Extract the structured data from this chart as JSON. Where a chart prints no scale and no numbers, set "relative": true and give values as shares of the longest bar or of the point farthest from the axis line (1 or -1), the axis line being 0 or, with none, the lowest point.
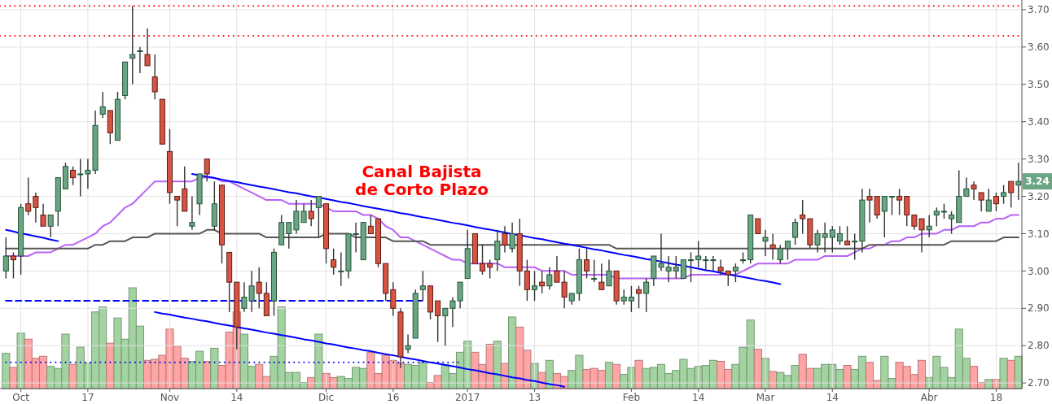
{
  "chart_data": [
    {
      "type": "candlestick",
      "categories": [
        null,
        null,
        "Oct",
        null,
        null,
        null,
        null,
        null,
        null,
        null,
        null,
        "17",
        null,
        null,
        null,
        null,
        null,
        null,
        null,
        null,
        null,
        null,
        "Nov",
        null,
        null,
        null,
        null,
        null,
        null,
        null,
        null,
        "14",
        null,
        null,
        null,
        null,
        null,
        null,
        null,
        null,
        null,
        null,
        null,
        "Dic",
        null,
        null,
        null,
        null,
        null,
        null,
        null,
        null,
        "16",
        null,
        null,
        null,
        null,
        null,
        null,
        null,
        null,
        null,
        "2017",
        null,
        null,
        null,
        null,
        null,
        null,
        null,
        null,
        "13",
        null,
        null,
        null,
        null,
        null,
        null,
        null,
        null,
        null,
        null,
        null,
        null,
        "Feb",
        null,
        null,
        null,
        null,
        null,
        null,
        null,
        null,
        "14",
        null,
        null,
        null,
        null,
        null,
        null,
        null,
        null,
        "Mar",
        null,
        null,
        null,
        null,
        null,
        null,
        null,
        null,
        "14",
        null,
        null,
        null,
        null,
        null,
        null,
        null,
        null,
        null,
        null,
        null,
        null,
        "Abr",
        null,
        null,
        null,
        null,
        null,
        null,
        null,
        null,
        "18",
        null,
        null,
        null
      ],
      "ohlc": [
        [
          3.0,
          3.09,
          2.98,
          3.04
        ],
        [
          3.04,
          3.05,
          2.98,
          3.03
        ],
        [
          3.04,
          3.18,
          2.99,
          3.17
        ],
        [
          3.18,
          3.25,
          3.15,
          3.16
        ],
        [
          3.2,
          3.21,
          3.13,
          3.17
        ],
        [
          3.15,
          3.18,
          3.12,
          3.12
        ],
        [
          3.12,
          3.15,
          3.09,
          3.15
        ],
        [
          3.16,
          3.25,
          3.12,
          3.25
        ],
        [
          3.22,
          3.29,
          3.22,
          3.28
        ],
        [
          3.27,
          3.28,
          3.23,
          3.25
        ],
        [
          3.26,
          3.3,
          3.2,
          3.26
        ],
        [
          3.26,
          3.3,
          3.22,
          3.27
        ],
        [
          3.27,
          3.43,
          3.26,
          3.39
        ],
        [
          3.42,
          3.48,
          3.41,
          3.44
        ],
        [
          3.43,
          3.43,
          3.34,
          3.37
        ],
        [
          3.35,
          3.48,
          3.35,
          3.46
        ],
        [
          3.47,
          3.56,
          3.46,
          3.56
        ],
        [
          3.57,
          3.71,
          3.5,
          3.58
        ],
        [
          3.59,
          3.6,
          3.53,
          3.59
        ],
        [
          3.58,
          3.65,
          3.55,
          3.55
        ],
        [
          3.52,
          3.58,
          3.46,
          3.48
        ],
        [
          3.46,
          3.46,
          3.34,
          3.34
        ],
        [
          3.32,
          3.38,
          3.18,
          3.21
        ],
        [
          3.2,
          3.2,
          3.12,
          3.19
        ],
        [
          3.22,
          3.28,
          3.16,
          3.16
        ],
        [
          3.12,
          3.2,
          3.11,
          3.13
        ],
        [
          3.18,
          3.26,
          3.15,
          3.26
        ],
        [
          3.3,
          3.3,
          3.24,
          3.26
        ],
        [
          3.12,
          3.24,
          3.11,
          3.18
        ],
        [
          3.23,
          3.23,
          3.02,
          3.07
        ],
        [
          3.05,
          3.05,
          2.89,
          2.97
        ],
        [
          2.97,
          2.97,
          2.79,
          2.85
        ],
        [
          2.9,
          2.97,
          2.89,
          2.93
        ],
        [
          2.92,
          3.0,
          2.89,
          2.96
        ],
        [
          2.97,
          3.01,
          2.9,
          2.94
        ],
        [
          2.94,
          2.97,
          2.88,
          2.88
        ],
        [
          2.92,
          3.06,
          2.88,
          3.05
        ],
        [
          3.07,
          3.15,
          3.07,
          3.13
        ],
        [
          3.1,
          3.13,
          3.06,
          3.13
        ],
        [
          3.11,
          3.19,
          3.1,
          3.16
        ],
        [
          3.13,
          3.18,
          3.13,
          3.16
        ],
        [
          3.16,
          3.19,
          3.12,
          3.14
        ],
        [
          3.17,
          3.2,
          3.09,
          3.2
        ],
        [
          3.18,
          3.18,
          3.02,
          3.06
        ],
        [
          3.03,
          3.06,
          2.99,
          3.01
        ],
        [
          3.0,
          3.05,
          2.96,
          3.0
        ],
        [
          3.0,
          3.1,
          2.98,
          3.1
        ],
        [
          3.1,
          3.13,
          3.05,
          3.1
        ],
        [
          3.03,
          3.13,
          3.03,
          3.13
        ],
        [
          3.12,
          3.15,
          3.1,
          3.1
        ],
        [
          3.14,
          3.14,
          3.01,
          3.02
        ],
        [
          3.02,
          3.02,
          2.92,
          2.94
        ],
        [
          2.95,
          2.97,
          2.88,
          2.9
        ],
        [
          2.89,
          2.9,
          2.74,
          2.77
        ],
        [
          2.79,
          2.83,
          2.78,
          2.8
        ],
        [
          2.82,
          2.95,
          2.82,
          2.94
        ],
        [
          2.95,
          3.0,
          2.92,
          2.96
        ],
        [
          2.96,
          2.96,
          2.87,
          2.89
        ],
        [
          2.92,
          2.92,
          2.81,
          2.88
        ],
        [
          2.88,
          2.9,
          2.8,
          2.9
        ],
        [
          2.9,
          2.93,
          2.85,
          2.92
        ],
        [
          2.92,
          2.97,
          2.9,
          2.97
        ],
        [
          2.98,
          3.11,
          2.98,
          3.06
        ],
        [
          3.1,
          3.1,
          3.02,
          3.02
        ],
        [
          3.02,
          3.07,
          2.99,
          3.0
        ],
        [
          3.02,
          3.03,
          2.98,
          3.01
        ],
        [
          3.03,
          3.11,
          3.0,
          3.08
        ],
        [
          3.1,
          3.12,
          3.05,
          3.07
        ],
        [
          3.06,
          3.13,
          3.05,
          3.1
        ],
        [
          3.1,
          3.14,
          2.96,
          3.0
        ],
        [
          3.0,
          3.03,
          2.92,
          2.95
        ],
        [
          2.95,
          3.0,
          2.92,
          2.96
        ],
        [
          2.97,
          3.0,
          2.94,
          2.96
        ],
        [
          2.96,
          3.01,
          2.95,
          2.99
        ],
        [
          3.0,
          3.04,
          2.97,
          2.97
        ],
        [
          2.97,
          3.0,
          2.9,
          2.93
        ],
        [
          2.92,
          2.94,
          2.91,
          2.94
        ],
        [
          2.94,
          3.06,
          2.92,
          3.03
        ],
        [
          3.03,
          3.06,
          2.98,
          3.0
        ],
        [
          2.98,
          3.03,
          2.97,
          2.98
        ],
        [
          2.97,
          3.02,
          2.95,
          2.95
        ],
        [
          2.96,
          3.03,
          2.96,
          3.0
        ],
        [
          3.0,
          3.0,
          2.91,
          2.92
        ],
        [
          2.92,
          2.95,
          2.91,
          2.93
        ],
        [
          2.92,
          2.96,
          2.89,
          2.93
        ],
        [
          2.95,
          2.96,
          2.9,
          2.94
        ],
        [
          2.94,
          2.98,
          2.89,
          2.97
        ],
        [
          2.98,
          3.04,
          2.96,
          3.04
        ],
        [
          3.01,
          3.1,
          3.0,
          3.02
        ],
        [
          3.0,
          3.04,
          2.97,
          3.01
        ],
        [
          3.0,
          3.04,
          2.98,
          3.01
        ],
        [
          2.98,
          3.03,
          2.98,
          3.03
        ],
        [
          3.03,
          3.05,
          2.97,
          3.03
        ],
        [
          3.03,
          3.08,
          3.01,
          3.04
        ],
        [
          3.03,
          3.04,
          3.0,
          3.03
        ],
        [
          3.03,
          3.04,
          3.0,
          3.03
        ],
        [
          3.01,
          3.03,
          2.99,
          3.0
        ],
        [
          3.0,
          3.0,
          2.96,
          2.99
        ],
        [
          3.0,
          3.02,
          2.97,
          3.01
        ],
        [
          3.03,
          3.05,
          3.02,
          3.03
        ],
        [
          3.03,
          3.15,
          3.02,
          3.15
        ],
        [
          3.14,
          3.14,
          3.1,
          3.1
        ],
        [
          3.08,
          3.11,
          3.04,
          3.09
        ],
        [
          3.07,
          3.1,
          3.03,
          3.06
        ],
        [
          3.03,
          3.07,
          3.02,
          3.06
        ],
        [
          3.06,
          3.08,
          3.03,
          3.08
        ],
        [
          3.09,
          3.14,
          3.07,
          3.13
        ],
        [
          3.15,
          3.19,
          3.1,
          3.14
        ],
        [
          3.14,
          3.14,
          3.06,
          3.07
        ],
        [
          3.07,
          3.11,
          3.05,
          3.1
        ],
        [
          3.09,
          3.13,
          3.05,
          3.1
        ],
        [
          3.09,
          3.12,
          3.05,
          3.11
        ],
        [
          3.08,
          3.12,
          3.07,
          3.1
        ],
        [
          3.08,
          3.12,
          3.07,
          3.07
        ],
        [
          3.08,
          3.1,
          3.03,
          3.08
        ],
        [
          3.08,
          3.22,
          3.05,
          3.19
        ],
        [
          3.2,
          3.22,
          3.13,
          3.19
        ],
        [
          3.2,
          3.2,
          3.14,
          3.15
        ],
        [
          3.16,
          3.2,
          3.09,
          3.2
        ],
        [
          3.2,
          3.2,
          3.15,
          3.2
        ],
        [
          3.2,
          3.22,
          3.15,
          3.19
        ],
        [
          3.2,
          3.2,
          3.12,
          3.15
        ],
        [
          3.15,
          3.15,
          3.11,
          3.12
        ],
        [
          3.14,
          3.14,
          3.05,
          3.11
        ],
        [
          3.11,
          3.15,
          3.09,
          3.12
        ],
        [
          3.15,
          3.17,
          3.12,
          3.16
        ],
        [
          3.16,
          3.18,
          3.14,
          3.16
        ],
        [
          3.14,
          3.16,
          3.1,
          3.15
        ],
        [
          3.13,
          3.27,
          3.13,
          3.2
        ],
        [
          3.2,
          3.25,
          3.2,
          3.22
        ],
        [
          3.23,
          3.24,
          3.19,
          3.22
        ],
        [
          3.21,
          3.21,
          3.16,
          3.19
        ],
        [
          3.16,
          3.22,
          3.16,
          3.19
        ],
        [
          3.2,
          3.21,
          3.16,
          3.18
        ],
        [
          3.2,
          3.23,
          3.18,
          3.21
        ],
        [
          3.24,
          3.24,
          3.17,
          3.21
        ],
        [
          3.23,
          3.29,
          3.19,
          3.24
        ]
      ],
      "series": [
        {
          "type": "line",
          "color": "#b862f5",
          "values": [
            3.04,
            3.04,
            3.04,
            3.04,
            3.05,
            3.05,
            3.05,
            3.06,
            3.07,
            3.07,
            3.08,
            3.09,
            3.1,
            3.12,
            3.13,
            3.15,
            3.17,
            3.18,
            3.2,
            3.22,
            3.24,
            3.24,
            3.24,
            3.24,
            3.24,
            3.24,
            3.25,
            3.25,
            3.25,
            3.24,
            3.24,
            3.23,
            3.22,
            3.21,
            3.2,
            3.19,
            3.19,
            3.19,
            3.18,
            3.18,
            3.18,
            3.18,
            3.18,
            3.17,
            3.16,
            3.16,
            3.16,
            3.16,
            3.15,
            3.15,
            3.14,
            3.12,
            3.11,
            3.09,
            3.09,
            3.08,
            3.07,
            3.06,
            3.05,
            3.04,
            3.03,
            3.03,
            3.02,
            3.02,
            3.02,
            3.02,
            3.02,
            3.01,
            3.01,
            3.01,
            3.01,
            3.01,
            3.0,
            3.0,
            3.0,
            3.0,
            2.99,
            2.99,
            2.99,
            2.99,
            2.99,
            2.99,
            2.98,
            2.98,
            2.98,
            2.98,
            2.98,
            2.98,
            2.98,
            2.98,
            2.98,
            2.98,
            2.99,
            2.99,
            2.99,
            2.99,
            2.99,
            2.99,
            2.99,
            3.0,
            3.01,
            3.02,
            3.02,
            3.02,
            3.02,
            3.02,
            3.03,
            3.03,
            3.03,
            3.03,
            3.04,
            3.04,
            3.04,
            3.04,
            3.05,
            3.06,
            3.06,
            3.07,
            3.07,
            3.08,
            3.08,
            3.09,
            3.09,
            3.1,
            3.1,
            3.1,
            3.11,
            3.11,
            3.12,
            3.12,
            3.12,
            3.13,
            3.13,
            3.14,
            3.14,
            3.15,
            3.15
          ]
        },
        {
          "type": "line",
          "color": "#555555",
          "values": [
            3.06,
            3.06,
            3.06,
            3.06,
            3.06,
            3.06,
            3.06,
            3.06,
            3.06,
            3.06,
            3.06,
            3.06,
            3.07,
            3.07,
            3.08,
            3.08,
            3.08,
            3.09,
            3.09,
            3.09,
            3.1,
            3.1,
            3.1,
            3.1,
            3.1,
            3.1,
            3.1,
            3.11,
            3.11,
            3.1,
            3.1,
            3.1,
            3.1,
            3.1,
            3.1,
            3.09,
            3.09,
            3.09,
            3.09,
            3.09,
            3.09,
            3.09,
            3.09,
            3.1,
            3.1,
            3.1,
            3.1,
            3.09,
            3.09,
            3.09,
            3.09,
            3.09,
            3.08,
            3.08,
            3.08,
            3.08,
            3.08,
            3.07,
            3.07,
            3.07,
            3.07,
            3.07,
            3.07,
            3.07,
            3.07,
            3.07,
            3.07,
            3.07,
            3.07,
            3.07,
            3.07,
            3.07,
            3.07,
            3.07,
            3.07,
            3.07,
            3.07,
            3.07,
            3.07,
            3.07,
            3.07,
            3.07,
            3.06,
            3.06,
            3.06,
            3.06,
            3.06,
            3.06,
            3.06,
            3.06,
            3.06,
            3.06,
            3.06,
            3.06,
            3.06,
            3.06,
            3.06,
            3.06,
            3.06,
            3.06,
            3.06,
            3.06,
            3.06,
            3.06,
            3.06,
            3.06,
            3.06,
            3.06,
            3.06,
            3.06,
            3.06,
            3.06,
            3.06,
            3.06,
            3.06,
            3.06,
            3.07,
            3.07,
            3.07,
            3.07,
            3.07,
            3.07,
            3.07,
            3.07,
            3.07,
            3.07,
            3.07,
            3.08,
            3.08,
            3.08,
            3.08,
            3.08,
            3.08,
            3.08,
            3.09,
            3.09,
            3.09
          ]
        },
        {
          "type": "line",
          "color": "#0000ff",
          "line_style": "solid",
          "values": [
            null,
            null,
            null,
            null,
            null,
            null,
            null,
            null,
            null,
            null,
            null,
            null,
            null,
            null,
            null,
            null,
            null,
            null,
            null,
            null,
            null,
            null,
            null,
            null,
            null,
            3.26,
            3.256,
            3.253,
            3.249,
            3.245,
            3.241,
            3.238,
            3.234,
            3.23,
            3.226,
            3.223,
            3.219,
            3.215,
            3.211,
            3.208,
            3.204,
            3.2,
            3.197,
            3.193,
            3.189,
            3.185,
            3.182,
            3.178,
            3.174,
            3.17,
            3.167,
            3.163,
            3.159,
            3.155,
            3.152,
            3.148,
            3.144,
            3.141,
            3.137,
            3.133,
            3.129,
            3.126,
            3.122,
            3.118,
            3.114,
            3.111,
            3.107,
            3.103,
            3.099,
            3.096,
            3.092,
            3.088,
            3.085,
            3.081,
            3.077,
            3.073,
            3.07,
            3.066,
            3.062,
            3.058,
            3.055,
            3.051,
            3.047,
            3.043,
            3.04,
            3.036,
            3.032,
            3.029,
            3.025,
            3.021,
            3.017,
            3.014,
            3.01,
            3.006,
            3.002,
            2.999,
            2.995,
            2.991,
            2.987,
            2.984,
            2.98,
            2.976,
            2.973,
            2.969,
            2.965,
            null,
            null,
            null,
            null,
            null,
            null,
            null,
            null,
            null,
            null,
            null,
            null,
            null,
            null,
            null,
            null,
            null,
            null,
            null,
            null,
            null,
            null,
            null,
            null,
            null,
            null,
            null,
            null,
            null,
            null,
            null,
            null
          ]
        },
        {
          "type": "line",
          "color": "#0000ff",
          "line_style": "solid",
          "values": [
            null,
            null,
            null,
            null,
            null,
            null,
            null,
            null,
            null,
            null,
            null,
            null,
            null,
            null,
            null,
            null,
            null,
            null,
            null,
            null,
            2.89,
            2.886,
            2.883,
            2.879,
            2.875,
            2.872,
            2.868,
            2.865,
            2.861,
            2.857,
            2.854,
            2.85,
            2.846,
            2.843,
            2.839,
            2.835,
            2.832,
            2.828,
            2.825,
            2.821,
            2.817,
            2.814,
            2.81,
            2.806,
            2.803,
            2.799,
            2.795,
            2.792,
            2.788,
            2.785,
            2.781,
            2.777,
            2.774,
            2.77,
            2.766,
            2.763,
            2.759,
            2.755,
            2.752,
            2.748,
            2.745,
            2.741,
            2.737,
            2.734,
            2.73,
            2.726,
            2.723,
            2.719,
            2.715,
            2.712,
            2.708,
            2.705,
            2.701,
            2.697,
            2.694,
            2.69,
            null,
            null,
            null,
            null,
            null,
            null,
            null,
            null,
            null,
            null,
            null,
            null,
            null,
            null,
            null,
            null,
            null,
            null,
            null,
            null,
            null,
            null,
            null,
            null,
            null,
            null,
            null,
            null,
            null,
            null,
            null,
            null,
            null,
            null,
            null,
            null,
            null,
            null,
            null,
            null,
            null,
            null,
            null,
            null,
            null,
            null,
            null,
            null,
            null,
            null,
            null,
            null,
            null,
            null,
            null,
            null,
            null,
            null,
            null,
            null,
            null
          ]
        },
        {
          "type": "line",
          "color": "#0000ff",
          "line_style": "solid",
          "values": [
            3.11,
            3.106,
            3.101,
            3.097,
            3.093,
            3.089,
            3.084,
            3.08,
            null,
            null,
            null,
            null,
            null,
            null,
            null,
            null,
            null,
            null,
            null,
            null,
            null,
            null,
            null,
            null,
            null,
            null,
            null,
            null,
            null,
            null,
            null,
            null,
            null,
            null,
            null,
            null,
            null,
            null,
            null,
            null,
            null,
            null,
            null,
            null,
            null,
            null,
            null,
            null,
            null,
            null,
            null,
            null,
            null,
            null,
            null,
            null,
            null,
            null,
            null,
            null,
            null,
            null,
            null,
            null,
            null,
            null,
            null,
            null,
            null,
            null,
            null,
            null,
            null,
            null,
            null,
            null,
            null,
            null,
            null,
            null,
            null,
            null,
            null,
            null,
            null,
            null,
            null,
            null,
            null,
            null,
            null,
            null,
            null,
            null,
            null,
            null,
            null,
            null,
            null,
            null,
            null,
            null,
            null,
            null,
            null,
            null,
            null,
            null,
            null,
            null,
            null,
            null,
            null,
            null,
            null,
            null,
            null,
            null,
            null,
            null,
            null,
            null,
            null,
            null,
            null,
            null,
            null,
            null,
            null,
            null,
            null,
            null,
            null,
            null,
            null,
            null,
            null
          ]
        },
        {
          "type": "line",
          "color": "#0000ff",
          "line_style": "dashed",
          "values": [
            2.92,
            2.92,
            2.92,
            2.92,
            2.92,
            2.92,
            2.92,
            2.92,
            2.92,
            2.92,
            2.92,
            2.92,
            2.92,
            2.92,
            2.92,
            2.92,
            2.92,
            2.92,
            2.92,
            2.92,
            2.92,
            2.92,
            2.92,
            2.92,
            2.92,
            2.92,
            2.92,
            2.92,
            2.92,
            2.92,
            2.92,
            2.92,
            2.92,
            2.92,
            2.92,
            2.92,
            2.92,
            2.92,
            2.92,
            2.92,
            2.92,
            2.92,
            2.92,
            2.92,
            2.92,
            2.92,
            2.92,
            2.92,
            2.92,
            2.92,
            2.92,
            2.92,
            2.92,
            2.92,
            2.92,
            2.92,
            2.92,
            null,
            null,
            null,
            null,
            null,
            null,
            null,
            null,
            null,
            null,
            null,
            null,
            null,
            null,
            null,
            null,
            null,
            null,
            null,
            null,
            null,
            null,
            null,
            null,
            null,
            null,
            null,
            null,
            null,
            null,
            null,
            null,
            null,
            null,
            null,
            null,
            null,
            null,
            null,
            null,
            null,
            null,
            null,
            null,
            null,
            null,
            null,
            null,
            null,
            null,
            null,
            null,
            null,
            null,
            null,
            null,
            null,
            null,
            null,
            null,
            null,
            null,
            null,
            null,
            null,
            null,
            null,
            null,
            null,
            null,
            null,
            null,
            null,
            null,
            null,
            null,
            null,
            null,
            null,
            null
          ]
        },
        {
          "type": "line",
          "color": "#0000ff",
          "line_style": "dotted",
          "values": [
            2.755,
            2.755,
            2.755,
            2.755,
            2.755,
            2.755,
            2.755,
            2.755,
            2.755,
            2.755,
            2.755,
            2.755,
            2.755,
            2.755,
            2.755,
            2.755,
            2.755,
            2.755,
            2.755,
            2.755,
            2.755,
            2.755,
            2.755,
            2.755,
            2.755,
            2.755,
            2.755,
            2.755,
            2.755,
            2.755,
            2.755,
            2.755,
            2.755,
            2.755,
            2.755,
            2.755,
            2.755,
            2.755,
            2.755,
            2.755,
            2.755,
            2.755,
            2.755,
            2.755,
            2.755,
            2.755,
            2.755,
            2.755,
            2.755,
            2.755,
            2.755,
            2.755,
            2.755,
            2.755,
            2.755,
            2.755,
            2.755,
            2.755,
            2.755,
            2.755,
            2.755,
            2.755,
            null,
            null,
            null,
            null,
            null,
            null,
            null,
            null,
            null,
            null,
            null,
            null,
            null,
            null,
            null,
            null,
            null,
            null,
            null,
            null,
            null,
            null,
            null,
            null,
            null,
            null,
            null,
            null,
            null,
            null,
            null,
            null,
            null,
            null,
            null,
            null,
            null,
            null,
            null,
            null,
            null,
            null,
            null,
            null,
            null,
            null,
            null,
            null,
            null,
            null,
            null,
            null,
            null,
            null,
            null,
            null,
            null,
            null,
            null,
            null,
            null,
            null,
            null,
            null,
            null,
            null,
            null,
            null,
            null,
            null,
            null,
            null,
            null,
            null,
            null
          ]
        }
      ],
      "ref_lines": [
        {
          "axis": "y",
          "value": 3.71,
          "color": "#ff0000",
          "line_style": "dotted"
        },
        {
          "axis": "y",
          "value": 3.63,
          "color": "#ff0000",
          "line_style": "dotted"
        }
      ],
      "ylim": [
        2.685,
        3.726
      ],
      "yticks": [
        {
          "value": 2.7,
          "label": "2.70"
        },
        {
          "value": 2.8,
          "label": "2.80"
        },
        {
          "value": 2.9,
          "label": "2.90"
        },
        {
          "value": 3.0,
          "label": "3.00"
        },
        {
          "value": 3.1,
          "label": "3.10"
        },
        {
          "value": 3.2,
          "label": "3.20"
        },
        {
          "value": 3.3,
          "label": "3.30"
        },
        {
          "value": 3.4,
          "label": "3.40"
        },
        {
          "value": 3.5,
          "label": "3.50"
        },
        {
          "value": 3.6,
          "label": "3.60"
        },
        {
          "value": 3.7,
          "label": "3.70"
        }
      ],
      "grid": true,
      "annotations": [
        "Canal Bajista\nde Corto Plazo",
        {
          "text": "3.24",
          "y": 3.24
        }
      ]
    },
    {
      "type": "bar",
      "relative": true,
      "categories": [
        null,
        null,
        null,
        null,
        null,
        null,
        null,
        null,
        null,
        null,
        null,
        null,
        null,
        null,
        null,
        null,
        null,
        null,
        null,
        null,
        null,
        null,
        null,
        null,
        null,
        null,
        null,
        null,
        null,
        null,
        null,
        null,
        null,
        null,
        null,
        null,
        null,
        null,
        null,
        null,
        null,
        null,
        null,
        null,
        null,
        null,
        null,
        null,
        null,
        null,
        null,
        null,
        null,
        null,
        null,
        null,
        null,
        null,
        null,
        null,
        null,
        null,
        null,
        null,
        null,
        null,
        null,
        null,
        null,
        null,
        null,
        null,
        null,
        null,
        null,
        null,
        null,
        null,
        null,
        null,
        null,
        null,
        null,
        null,
        null,
        null,
        null,
        null,
        null,
        null,
        null,
        null,
        null,
        null,
        null,
        null,
        null,
        null,
        null,
        null,
        null,
        null,
        null,
        null,
        null,
        null,
        null,
        null,
        null,
        null,
        null,
        null,
        null,
        null,
        null,
        null,
        null,
        null,
        null,
        null,
        null,
        null,
        null,
        null,
        null,
        null,
        null,
        null,
        null,
        null,
        null,
        null,
        null,
        null,
        null,
        null,
        null
      ],
      "values": [
        0.35,
        0.21,
        0.55,
        0.49,
        0.3,
        0.32,
        0.22,
        0.2,
        0.54,
        0.24,
        0.41,
        0.25,
        0.76,
        0.81,
        0.45,
        0.7,
        0.49,
        1.0,
        0.62,
        0.28,
        0.29,
        0.33,
        0.59,
        0.42,
        0.3,
        0.27,
        0.37,
        0.27,
        0.4,
        0.23,
        0.56,
        0.76,
        0.54,
        0.22,
        0.24,
        0.12,
        0.32,
        0.81,
        0.16,
        0.16,
        0.06,
        0.11,
        0.54,
        0.15,
        0.11,
        0.12,
        0.1,
        0.21,
        0.2,
        0.36,
        0.15,
        0.33,
        0.28,
        0.25,
        0.24,
        0.23,
        0.26,
        0.06,
        0.13,
        0.24,
        0.15,
        0.36,
        0.47,
        0.36,
        0.24,
        0.44,
        0.47,
        0.25,
        0.71,
        0.61,
        0.38,
        0.25,
        0.16,
        0.28,
        0.15,
        0.12,
        0.18,
        0.33,
        0.19,
        0.2,
        0.18,
        0.26,
        0.24,
        0.14,
        0.21,
        0.28,
        0.2,
        0.21,
        0.24,
        0.15,
        0.18,
        0.29,
        0.2,
        0.22,
        0.23,
        0.28,
        0.27,
        0.19,
        0.24,
        0.41,
        0.68,
        0.39,
        0.3,
        0.17,
        0.16,
        0.13,
        0.23,
        0.34,
        0.2,
        0.2,
        0.24,
        0.24,
        0.19,
        0.23,
        0.19,
        0.32,
        0.26,
        0.08,
        0.32,
        0.1,
        0.26,
        0.22,
        0.14,
        0.28,
        0.11,
        0.32,
        0.21,
        0.11,
        0.59,
        0.3,
        0.22,
        0.06,
        0.09,
        0.09,
        0.3,
        0.28,
        0.32
      ],
      "colors": [
        "#a3d3a1",
        "#ffa5a5",
        "#a3d3a1",
        "#ffa5a5",
        "#ffa5a5",
        "#ffa5a5",
        "#a3d3a1",
        "#a3d3a1",
        "#a3d3a1",
        "#ffa5a5",
        "#a3d3a1",
        "#a3d3a1",
        "#a3d3a1",
        "#a3d3a1",
        "#ffa5a5",
        "#a3d3a1",
        "#a3d3a1",
        "#a3d3a1",
        "#a3d3a1",
        "#ffa5a5",
        "#ffa5a5",
        "#ffa5a5",
        "#ffa5a5",
        "#ffa5a5",
        "#ffa5a5",
        "#a3d3a1",
        "#a3d3a1",
        "#ffa5a5",
        "#a3d3a1",
        "#ffa5a5",
        "#ffa5a5",
        "#ffa5a5",
        "#a3d3a1",
        "#a3d3a1",
        "#ffa5a5",
        "#ffa5a5",
        "#a3d3a1",
        "#a3d3a1",
        "#a3d3a1",
        "#a3d3a1",
        "#a3d3a1",
        "#ffa5a5",
        "#a3d3a1",
        "#ffa5a5",
        "#ffa5a5",
        "#a3d3a1",
        "#a3d3a1",
        "#a3d3a1",
        "#a3d3a1",
        "#ffa5a5",
        "#ffa5a5",
        "#ffa5a5",
        "#ffa5a5",
        "#ffa5a5",
        "#a3d3a1",
        "#a3d3a1",
        "#a3d3a1",
        "#ffa5a5",
        "#ffa5a5",
        "#a3d3a1",
        "#a3d3a1",
        "#a3d3a1",
        "#a3d3a1",
        "#ffa5a5",
        "#ffa5a5",
        "#ffa5a5",
        "#a3d3a1",
        "#ffa5a5",
        "#a3d3a1",
        "#ffa5a5",
        "#ffa5a5",
        "#a3d3a1",
        "#ffa5a5",
        "#a3d3a1",
        "#ffa5a5",
        "#ffa5a5",
        "#a3d3a1",
        "#a3d3a1",
        "#ffa5a5",
        "#ffa5a5",
        "#ffa5a5",
        "#a3d3a1",
        "#ffa5a5",
        "#a3d3a1",
        "#a3d3a1",
        "#ffa5a5",
        "#a3d3a1",
        "#a3d3a1",
        "#a3d3a1",
        "#a3d3a1",
        "#a3d3a1",
        "#a3d3a1",
        "#a3d3a1",
        "#a3d3a1",
        "#a3d3a1",
        "#a3d3a1",
        "#ffa5a5",
        "#ffa5a5",
        "#a3d3a1",
        "#a3d3a1",
        "#a3d3a1",
        "#ffa5a5",
        "#a3d3a1",
        "#ffa5a5",
        "#a3d3a1",
        "#a3d3a1",
        "#a3d3a1",
        "#ffa5a5",
        "#ffa5a5",
        "#a3d3a1",
        "#a3d3a1",
        "#a3d3a1",
        "#a3d3a1",
        "#ffa5a5",
        "#a3d3a1",
        "#a3d3a1",
        "#ffa5a5",
        "#ffa5a5",
        "#a3d3a1",
        "#a3d3a1",
        "#ffa5a5",
        "#ffa5a5",
        "#ffa5a5",
        "#ffa5a5",
        "#a3d3a1",
        "#a3d3a1",
        "#a3d3a1",
        "#a3d3a1",
        "#a3d3a1",
        "#a3d3a1",
        "#ffa5a5",
        "#ffa5a5",
        "#a3d3a1",
        "#ffa5a5",
        "#a3d3a1",
        "#ffa5a5",
        "#a3d3a1"
      ]
    }
  ]
}
